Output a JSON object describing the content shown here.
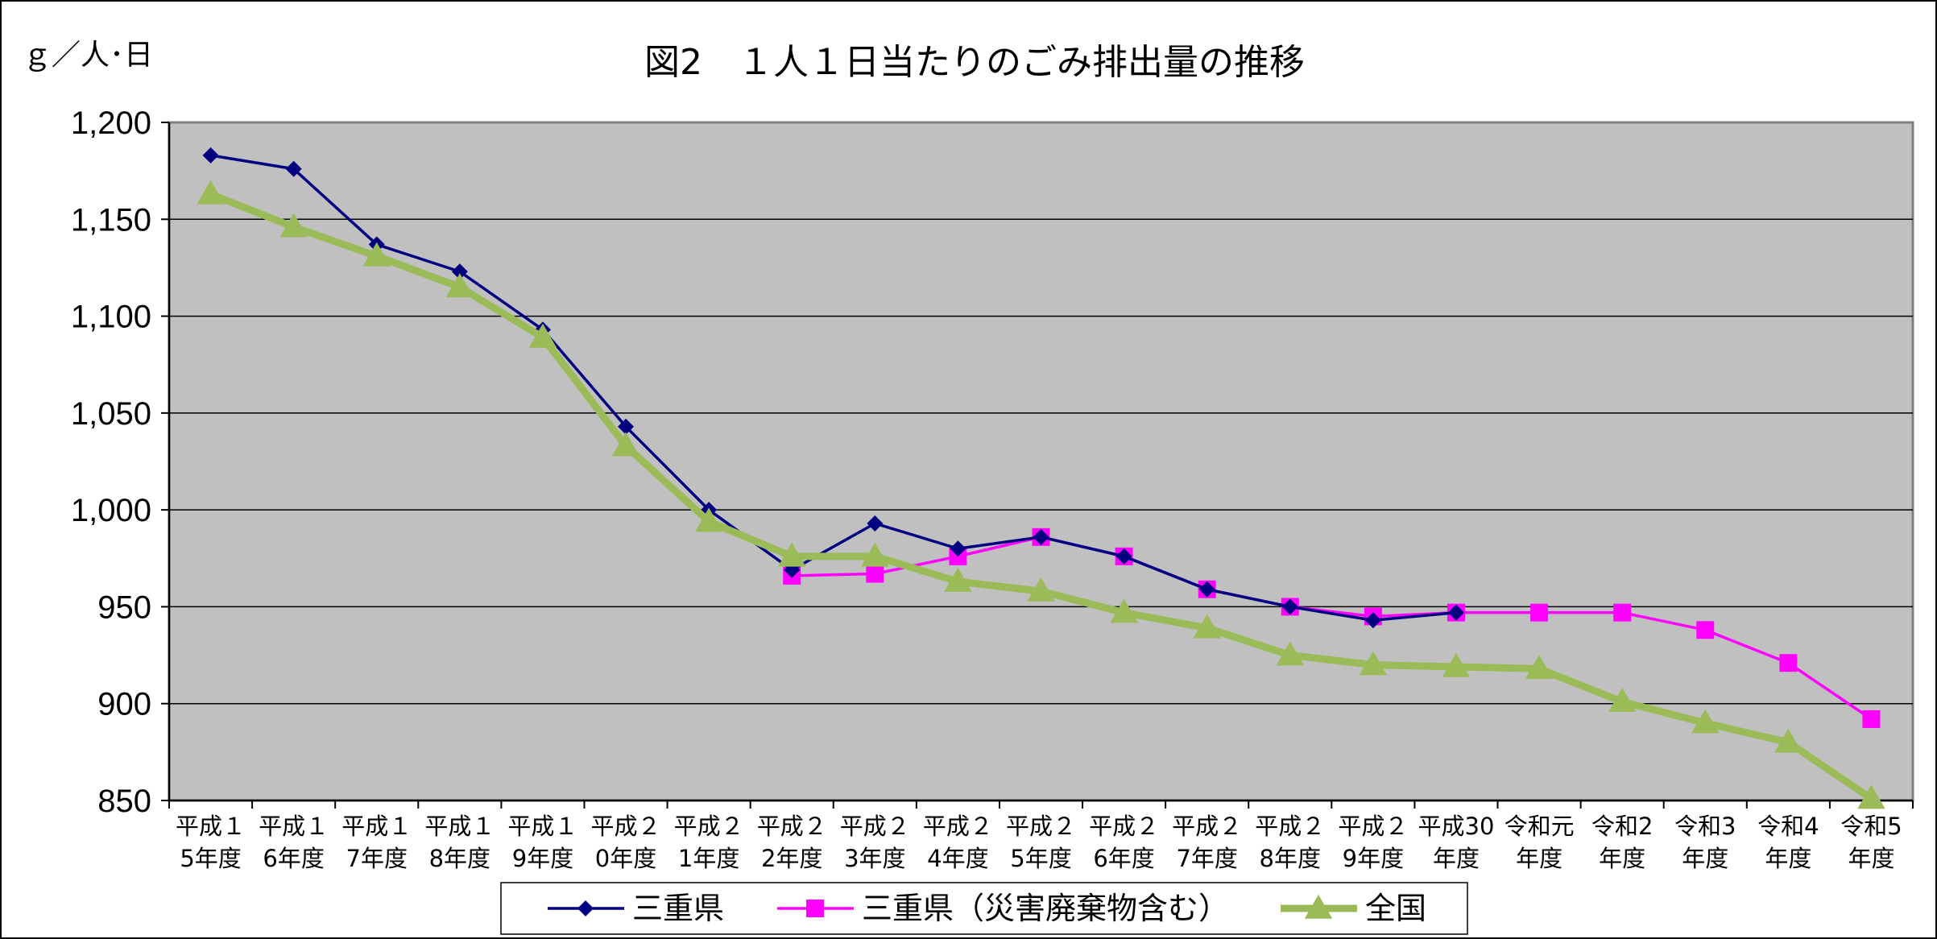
{
  "chart_data": {
    "type": "line",
    "title": "図2　１人１日当たりのごみ排出量の推移",
    "ylabel": "ｇ／人･日",
    "xlabel": "",
    "ylim": [
      850,
      1200
    ],
    "yticks": [
      "1,200",
      "1,150",
      "1,100",
      "1,050",
      "1,000",
      "950",
      "900",
      "850"
    ],
    "ytick_values": [
      1200,
      1150,
      1100,
      1050,
      1000,
      950,
      900,
      850
    ],
    "grid": true,
    "legend_position": "bottom",
    "plot_background": "#c0c0c0",
    "categories": [
      [
        "平成１",
        "5年度"
      ],
      [
        "平成１",
        "6年度"
      ],
      [
        "平成１",
        "7年度"
      ],
      [
        "平成１",
        "8年度"
      ],
      [
        "平成１",
        "9年度"
      ],
      [
        "平成２",
        "0年度"
      ],
      [
        "平成２",
        "1年度"
      ],
      [
        "平成２",
        "2年度"
      ],
      [
        "平成２",
        "3年度"
      ],
      [
        "平成２",
        "4年度"
      ],
      [
        "平成２",
        "5年度"
      ],
      [
        "平成２",
        "6年度"
      ],
      [
        "平成２",
        "7年度"
      ],
      [
        "平成２",
        "8年度"
      ],
      [
        "平成２",
        "9年度"
      ],
      [
        "平成30",
        "年度"
      ],
      [
        "令和元",
        "年度"
      ],
      [
        "令和2",
        "年度"
      ],
      [
        "令和3",
        "年度"
      ],
      [
        "令和4",
        "年度"
      ],
      [
        "令和5",
        "年度"
      ]
    ],
    "series": [
      {
        "name": "三重県",
        "color": "#000080",
        "marker": "diamond",
        "values": [
          1183,
          1176,
          1137,
          1123,
          1093,
          1043,
          1000,
          969,
          993,
          980,
          986,
          976,
          959,
          950,
          943,
          947,
          null,
          null,
          null,
          null,
          null
        ]
      },
      {
        "name": "三重県（災害廃棄物含む）",
        "color": "#ff00ff",
        "marker": "square",
        "values": [
          null,
          null,
          null,
          null,
          null,
          null,
          null,
          966,
          967,
          976,
          986,
          976,
          959,
          950,
          945,
          947,
          947,
          947,
          938,
          921,
          892
        ]
      },
      {
        "name": "全国",
        "color": "#9bbb59",
        "marker": "triangle",
        "values": [
          1163,
          1146,
          1131,
          1115,
          1089,
          1033,
          994,
          976,
          976,
          963,
          958,
          947,
          939,
          925,
          920,
          919,
          918,
          901,
          890,
          880,
          851
        ]
      }
    ]
  }
}
